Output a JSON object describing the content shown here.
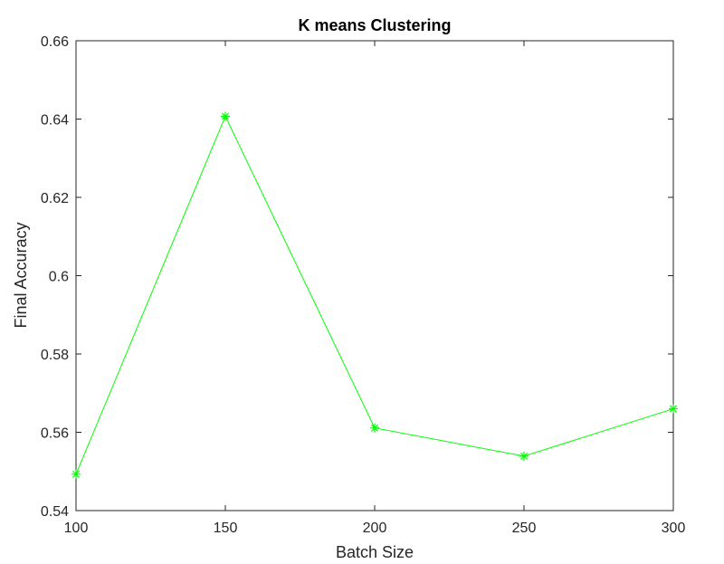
{
  "chart_data": {
    "type": "line",
    "title": "K means Clustering",
    "xlabel": "Batch Size",
    "ylabel": "Final Accuracy",
    "x": [
      100,
      150,
      200,
      250,
      300
    ],
    "series": [
      {
        "values": [
          0.5493,
          0.6407,
          0.5611,
          0.5539,
          0.566
        ],
        "color": "#00ff00",
        "marker": "asterisk"
      }
    ],
    "xlim": [
      100,
      300
    ],
    "ylim": [
      0.54,
      0.66
    ],
    "xticks": [
      100,
      150,
      200,
      250,
      300
    ],
    "xtick_labels": [
      "100",
      "150",
      "200",
      "250",
      "300"
    ],
    "yticks": [
      0.54,
      0.56,
      0.58,
      0.6,
      0.62,
      0.64,
      0.66
    ],
    "ytick_labels": [
      "0.54",
      "0.56",
      "0.58",
      "0.6",
      "0.62",
      "0.64",
      "0.66"
    ],
    "grid": false,
    "box": true
  }
}
